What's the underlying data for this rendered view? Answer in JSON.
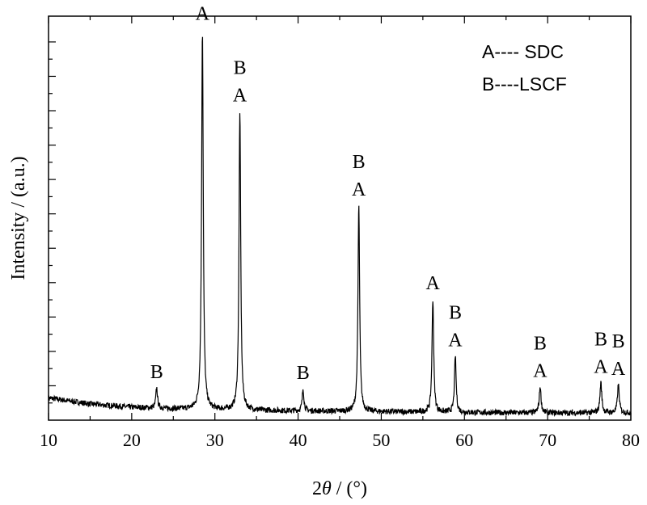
{
  "chart_data": {
    "type": "line",
    "xlabel_prefix": "2",
    "xlabel_theta": "θ",
    "xlabel_suffix": " / (°)",
    "ylabel": "Intensity / (a.u.)",
    "xlim": [
      10,
      80
    ],
    "ylim": [
      0,
      100
    ],
    "x_ticks": [
      "10",
      "20",
      "30",
      "40",
      "50",
      "60",
      "70",
      "80"
    ],
    "legend": [
      "A---- SDC",
      "B----LSCF"
    ],
    "legend_position": "top-right",
    "baseline": [
      [
        10,
        5.5
      ],
      [
        15,
        4.0
      ],
      [
        20,
        3.2
      ],
      [
        25,
        2.8
      ],
      [
        30,
        2.6
      ],
      [
        40,
        2.3
      ],
      [
        50,
        2.1
      ],
      [
        60,
        1.9
      ],
      [
        70,
        1.8
      ],
      [
        80,
        1.8
      ]
    ],
    "noise_amplitude": 0.7,
    "peaks": [
      {
        "x": 23.0,
        "height": 5.0,
        "width": 0.12,
        "labels": [
          "B"
        ]
      },
      {
        "x": 28.5,
        "height": 94.0,
        "width": 0.12,
        "labels": [
          "A"
        ]
      },
      {
        "x": 33.0,
        "height": 74.0,
        "width": 0.12,
        "labels": [
          "A",
          "B"
        ]
      },
      {
        "x": 40.6,
        "height": 5.5,
        "width": 0.12,
        "labels": [
          "B"
        ]
      },
      {
        "x": 47.3,
        "height": 51.0,
        "width": 0.12,
        "labels": [
          "A",
          "B"
        ]
      },
      {
        "x": 56.2,
        "height": 28.0,
        "width": 0.12,
        "labels": [
          "A"
        ]
      },
      {
        "x": 58.9,
        "height": 14.0,
        "width": 0.12,
        "labels": [
          "A",
          "B"
        ]
      },
      {
        "x": 69.1,
        "height": 6.5,
        "width": 0.13,
        "labels": [
          "A",
          "B"
        ]
      },
      {
        "x": 76.4,
        "height": 7.5,
        "width": 0.13,
        "labels": [
          "A",
          "B"
        ]
      },
      {
        "x": 78.5,
        "height": 7.0,
        "width": 0.13,
        "labels": [
          "A",
          "B"
        ]
      }
    ]
  }
}
